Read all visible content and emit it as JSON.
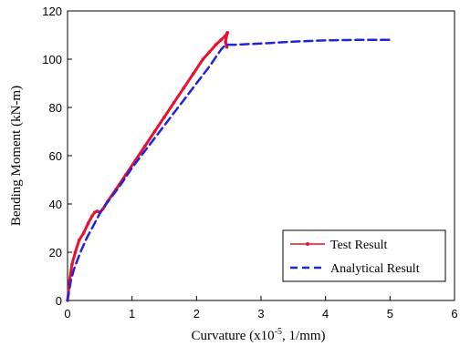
{
  "chart_data": {
    "type": "line",
    "xlabel_main": "Curvature (x10",
    "xlabel_sup": "-5",
    "xlabel_tail": ", 1/mm)",
    "ylabel": "Bending Moment (kN-m)",
    "xlim": [
      0,
      6
    ],
    "ylim": [
      0,
      120
    ],
    "xticks": [
      "0",
      "1",
      "2",
      "3",
      "4",
      "5",
      "6"
    ],
    "yticks": [
      "0",
      "20",
      "40",
      "60",
      "80",
      "100",
      "120"
    ],
    "legend_position": "bottom-right",
    "grid": false,
    "series": [
      {
        "name": "Test Result",
        "color": "#e8112d",
        "style": "solid-with-markers",
        "x": [
          0,
          0.03,
          0.07,
          0.12,
          0.18,
          0.25,
          0.32,
          0.38,
          0.42,
          0.46,
          0.5,
          0.55,
          0.62,
          0.75,
          0.9,
          1.05,
          1.2,
          1.35,
          1.5,
          1.65,
          1.8,
          1.95,
          2.1,
          2.2,
          2.3,
          2.38,
          2.44,
          2.47,
          2.48,
          2.46,
          2.45,
          2.47
        ],
        "y": [
          0,
          8,
          15,
          20,
          25,
          28,
          32,
          35,
          36.5,
          37,
          36.5,
          38,
          41,
          46,
          52,
          58,
          64,
          70,
          76,
          82,
          88,
          94,
          100,
          103,
          106,
          108,
          109.5,
          110.5,
          111,
          109,
          107,
          105
        ]
      },
      {
        "name": "Analytical Result",
        "color": "#1f23e0",
        "style": "dashed",
        "x": [
          0,
          0.05,
          0.1,
          0.2,
          0.3,
          0.4,
          0.5,
          0.6,
          0.8,
          1.0,
          1.2,
          1.4,
          1.6,
          1.8,
          2.0,
          2.2,
          2.38,
          2.45,
          2.6,
          3.0,
          3.5,
          4.0,
          4.5,
          5.0
        ],
        "y": [
          0,
          8,
          13,
          20,
          26,
          31,
          36,
          40,
          47,
          55,
          62,
          69,
          76,
          83,
          90,
          97,
          104,
          106,
          106,
          106.5,
          107.3,
          107.8,
          108,
          108
        ]
      }
    ]
  }
}
